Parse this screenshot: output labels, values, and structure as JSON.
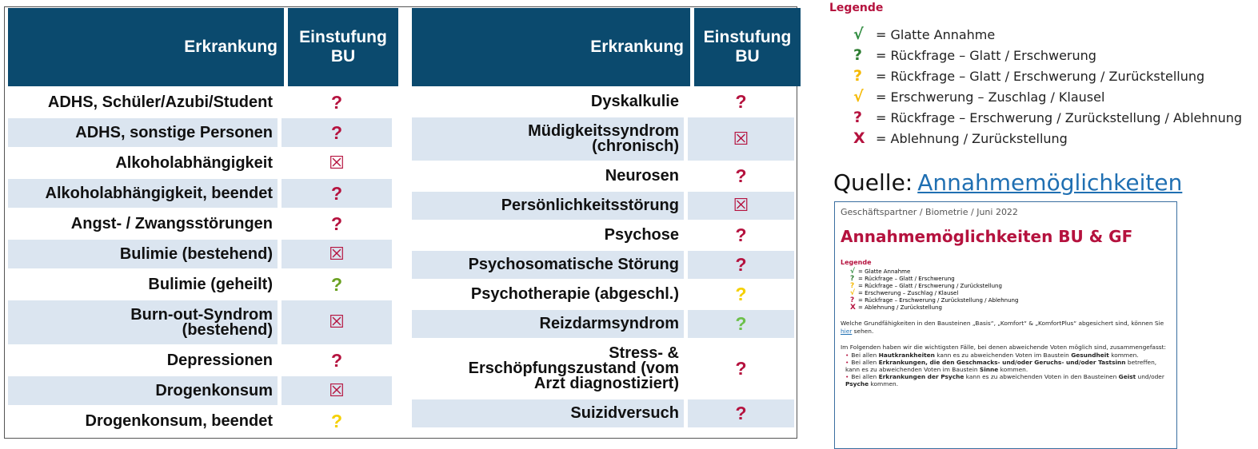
{
  "left_table": {
    "headers": [
      "Erkrankung",
      "Einstufung BU"
    ],
    "rows": [
      {
        "disease": "ADHS, Schüler/Azubi/Student",
        "rating": "?",
        "color": "#b5123e"
      },
      {
        "disease": "ADHS, sonstige Personen",
        "rating": "?",
        "color": "#b5123e"
      },
      {
        "disease": "Alkoholabhängigkeit",
        "rating": "☒",
        "color": "#b5123e"
      },
      {
        "disease": "Alkoholabhängigkeit, beendet",
        "rating": "?",
        "color": "#b5123e"
      },
      {
        "disease": "Angst- / Zwangsstörungen",
        "rating": "?",
        "color": "#b5123e"
      },
      {
        "disease": "Bulimie (bestehend)",
        "rating": "☒",
        "color": "#b5123e"
      },
      {
        "disease": "Bulimie (geheilt)",
        "rating": "?",
        "color": "#6aa121"
      },
      {
        "disease": "Burn-out-Syndrom\n(bestehend)",
        "rating": "☒",
        "color": "#b5123e"
      },
      {
        "disease": "Depressionen",
        "rating": "?",
        "color": "#b5123e"
      },
      {
        "disease": "Drogenkonsum",
        "rating": "☒",
        "color": "#b5123e"
      },
      {
        "disease": "Drogenkonsum, beendet",
        "rating": "?",
        "color": "#f5d000"
      }
    ]
  },
  "right_table": {
    "headers": [
      "Erkrankung",
      "Einstufung BU"
    ],
    "rows": [
      {
        "disease": "Dyskalkulie",
        "rating": "?",
        "color": "#b5123e"
      },
      {
        "disease": "Müdigkeitssyndrom\n(chronisch)",
        "rating": "☒",
        "color": "#b5123e"
      },
      {
        "disease": "Neurosen",
        "rating": "?",
        "color": "#b5123e"
      },
      {
        "disease": "Persönlichkeitsstörung",
        "rating": "☒",
        "color": "#b5123e"
      },
      {
        "disease": "Psychose",
        "rating": "?",
        "color": "#b5123e"
      },
      {
        "disease": "Psychosomatische Störung",
        "rating": "?",
        "color": "#b5123e"
      },
      {
        "disease": "Psychotherapie (abgeschl.)",
        "rating": "?",
        "color": "#f5d000"
      },
      {
        "disease": "Reizdarmsyndrom",
        "rating": "?",
        "color": "#6cc04a"
      },
      {
        "disease": "Stress- &\nErschöpfungszustand (vom\nArzt diagnostiziert)",
        "rating": "?",
        "color": "#b5123e"
      },
      {
        "disease": "Suizidversuch",
        "rating": "?",
        "color": "#b5123e"
      }
    ]
  },
  "legend": {
    "title": "Legende",
    "items": [
      {
        "symbol": "√",
        "color": "#2e8b3e",
        "text": "= Glatte Annahme"
      },
      {
        "symbol": "?",
        "color": "#2e7d32",
        "text": "= Rückfrage – Glatt / Erschwerung"
      },
      {
        "symbol": "?",
        "color": "#f5b800",
        "text": "= Rückfrage – Glatt / Erschwerung / Zurückstellung"
      },
      {
        "symbol": "√",
        "color": "#f5b800",
        "text": "= Erschwerung – Zuschlag / Klausel"
      },
      {
        "symbol": "?",
        "color": "#b5123e",
        "text": "= Rückfrage – Erschwerung / Zurückstellung / Ablehnung"
      },
      {
        "symbol": "X",
        "color": "#b5123e",
        "text": "= Ablehnung / Zurückstellung"
      }
    ]
  },
  "source": {
    "label": "Quelle:",
    "link": "Annahmemöglichkeiten"
  },
  "thumbnail": {
    "breadcrumb": "Geschäftspartner / Biometrie / Juni 2022",
    "title": "Annahmemöglichkeiten BU & GF",
    "paragraph1": [
      {
        "text": "Welche Grundfähigkeiten in den Bausteinen „Basis“, „Komfort“ & „KomfortPlus“ abgesichert sind, können Sie "
      },
      {
        "text": "hier",
        "link": true
      },
      {
        "text": " sehen."
      }
    ],
    "paragraph2": [
      {
        "text": "Im Folgenden haben wir die wichtigsten Fälle, bei denen abweichende Voten möglich sind, zusammengefasst:"
      }
    ],
    "bullets": [
      [
        {
          "text": "Bei allen "
        },
        {
          "text": "Hautkrankheiten",
          "bold": true
        },
        {
          "text": " kann es zu abweichenden Voten im Baustein "
        },
        {
          "text": "Gesundheit",
          "bold": true
        },
        {
          "text": " kommen."
        }
      ],
      [
        {
          "text": "Bei allen "
        },
        {
          "text": "Erkrankungen, die den Geschmacks- und/oder Geruchs- und/oder Tastsinn",
          "bold": true
        },
        {
          "text": " betreffen, kann es zu abweichenden Voten im Baustein "
        },
        {
          "text": "Sinne",
          "bold": true
        },
        {
          "text": " kommen."
        }
      ],
      [
        {
          "text": "Bei allen "
        },
        {
          "text": "Erkrankungen der Psyche",
          "bold": true
        },
        {
          "text": " kann es zu abweichenden Voten in den Bausteinen "
        },
        {
          "text": "Geist",
          "bold": true
        },
        {
          "text": " und/oder "
        },
        {
          "text": "Psyche",
          "bold": true
        },
        {
          "text": " kommen."
        }
      ]
    ]
  }
}
